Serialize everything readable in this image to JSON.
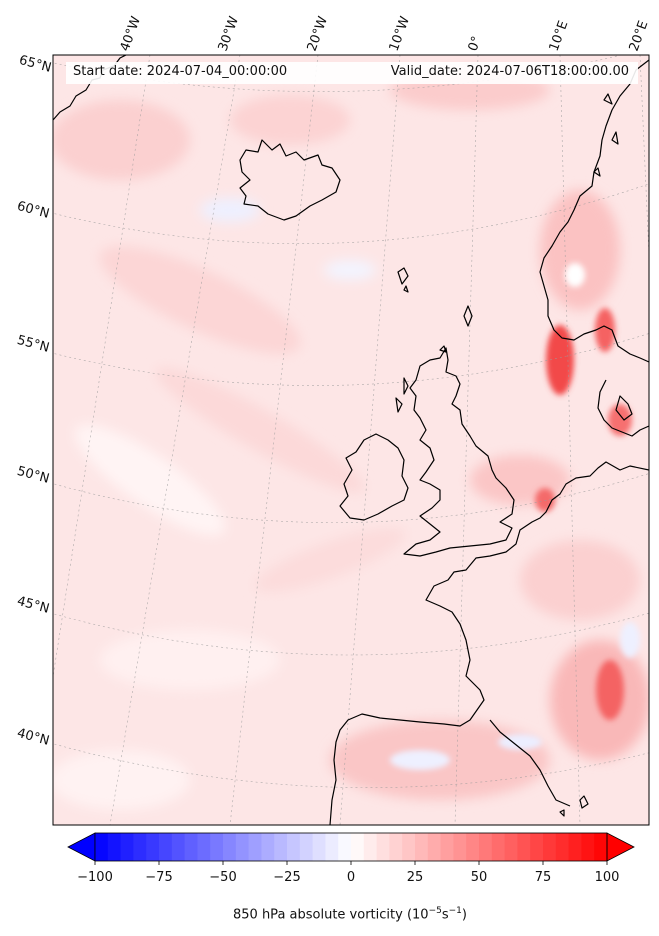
{
  "header": {
    "start_date": "Start date: 2024-07-04_00:00:00",
    "valid_date": "Valid_date: 2024-07-06T18:00:00.00"
  },
  "longitude_labels": [
    "40°W",
    "30°W",
    "20°W",
    "10°W",
    "0°",
    "10°E",
    "20°E"
  ],
  "latitude_labels": [
    "65°N",
    "60°N",
    "55°N",
    "50°N",
    "45°N",
    "40°N"
  ],
  "colorbar": {
    "ticks": [
      "−100",
      "−75",
      "−50",
      "−25",
      "0",
      "25",
      "50",
      "75",
      "100"
    ],
    "tick_values": [
      -100,
      -75,
      -50,
      -25,
      0,
      25,
      50,
      75,
      100
    ],
    "range": [
      -100,
      100
    ],
    "label_main": "850 hPa absolute vorticity (10",
    "label_exp1": "−5",
    "label_mid": "s",
    "label_exp2": "−1",
    "label_end": ")",
    "colormap": "bwr",
    "extend": "both"
  },
  "colors": {
    "coast": "#000000",
    "field_base": "#fde5e5",
    "positive_strong": "#f53b3b",
    "negative": "#e8ecff",
    "gridline": "#999999"
  }
}
